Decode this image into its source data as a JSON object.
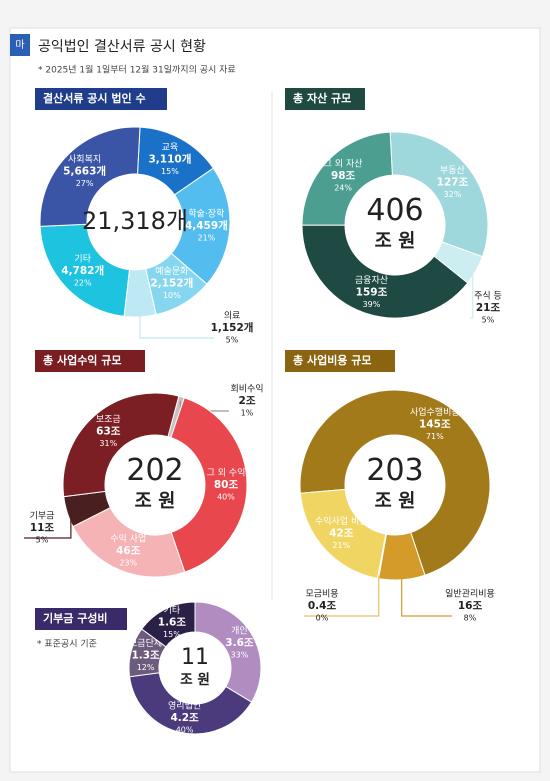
{
  "header": {
    "badge": "마",
    "title": "공익법인 결산서류 공시 현황",
    "subtitle": "* 2025년 1월 1일부터 12월 31일까지의 공시 자료"
  },
  "chart_data": [
    {
      "type": "pie",
      "title": "결산서류 공시 법인 수",
      "title_color": "#1f3d8a",
      "categories": [
        "교육",
        "학술·장학",
        "예술문화",
        "의료",
        "기타",
        "사회복지"
      ],
      "values": [
        3110,
        4459,
        2152,
        1152,
        4782,
        5663
      ],
      "value_labels": [
        "3,110개",
        "4,459개",
        "2,152개",
        "1,152개",
        "4,782개",
        "5,663개"
      ],
      "shares": [
        15,
        21,
        10,
        5,
        22,
        27
      ],
      "share_labels": [
        "15%",
        "21%",
        "10%",
        "5%",
        "22%",
        "27%"
      ],
      "colors": [
        "#1a72c8",
        "#54bdf0",
        "#86d6f0",
        "#bde9f5",
        "#1dc3df",
        "#3a55a6"
      ],
      "center_label": "21,318개"
    },
    {
      "type": "pie",
      "title": "총 자산 규모",
      "title_color": "#1e4a42",
      "categories": [
        "부동산",
        "주식 등",
        "금융자산",
        "그 외 자산"
      ],
      "values": [
        127,
        21,
        159,
        98
      ],
      "value_labels": [
        "127조",
        "21조",
        "159조",
        "98조"
      ],
      "shares": [
        32,
        5,
        39,
        24
      ],
      "share_labels": [
        "32%",
        "5%",
        "39%",
        "24%"
      ],
      "colors": [
        "#9ed8dc",
        "#cdeef0",
        "#1f4a43",
        "#4b9e90"
      ],
      "center_label": "406",
      "center_unit": "조 원"
    },
    {
      "type": "pie",
      "title": "총 사업수익 규모",
      "title_color": "#7a1e22",
      "categories": [
        "회비수익",
        "그 외 수익",
        "수익 사업",
        "기부금",
        "보조금"
      ],
      "values": [
        2,
        80,
        46,
        11,
        63
      ],
      "value_labels": [
        "2조",
        "80조",
        "46조",
        "11조",
        "63조"
      ],
      "shares": [
        1,
        40,
        23,
        5,
        31
      ],
      "share_labels": [
        "1%",
        "40%",
        "23%",
        "5%",
        "31%"
      ],
      "colors": [
        "#c9c0c0",
        "#e8484d",
        "#f6b3b5",
        "#4a1f20",
        "#7b1f24"
      ],
      "center_label": "202",
      "center_unit": "조 원"
    },
    {
      "type": "pie",
      "title": "총 사업비용 규모",
      "title_color": "#8a6410",
      "categories": [
        "사업수행비용",
        "일반관리비용",
        "모금비용",
        "수익사업 비용"
      ],
      "values": [
        145,
        16,
        0.4,
        42
      ],
      "value_labels": [
        "145조",
        "16조",
        "0.4조",
        "42조"
      ],
      "shares": [
        71,
        8,
        0,
        21
      ],
      "share_labels": [
        "71%",
        "8%",
        "0%",
        "21%"
      ],
      "colors": [
        "#a27a1a",
        "#d49b2a",
        "#e8c060",
        "#f0d562"
      ],
      "center_label": "203",
      "center_unit": "조 원"
    },
    {
      "type": "pie",
      "title": "기부금 구성비",
      "title_color": "#3a2a6a",
      "note": "* 표준공시 기준",
      "categories": [
        "개인",
        "영리법인",
        "모금단체",
        "기타"
      ],
      "values": [
        3.6,
        4.2,
        1.3,
        1.6
      ],
      "value_labels": [
        "3.6조",
        "4.2조",
        "1.3조",
        "1.6조"
      ],
      "shares": [
        33,
        40,
        12,
        15
      ],
      "share_labels": [
        "33%",
        "40%",
        "12%",
        "15%"
      ],
      "colors": [
        "#b08cc0",
        "#4b3b7c",
        "#6c5b7c",
        "#2b2046"
      ],
      "center_label": "11",
      "center_unit": "조 원"
    }
  ]
}
